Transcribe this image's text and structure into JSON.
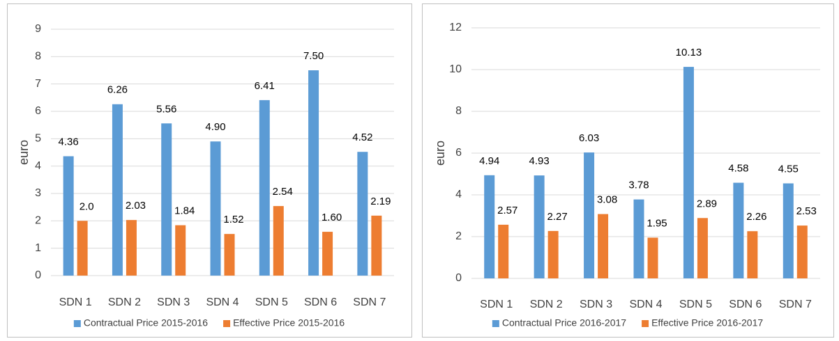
{
  "chart_data": [
    {
      "type": "bar",
      "y_label": "euro",
      "categories": [
        "SDN 1",
        "SDN 2",
        "SDN 3",
        "SDN 4",
        "SDN 5",
        "SDN 6",
        "SDN 7"
      ],
      "series": [
        {
          "name": "Contractual Price 2015-2016",
          "color": "#5b9bd5",
          "values": [
            4.36,
            6.26,
            5.56,
            4.9,
            6.41,
            7.5,
            4.52
          ],
          "value_labels": [
            "4.36",
            "6.26",
            "5.56",
            "4.90",
            "6.41",
            "7.50",
            "4.52"
          ]
        },
        {
          "name": "Effective Price 2015-2016",
          "color": "#ed7d31",
          "values": [
            2.0,
            2.03,
            1.84,
            1.52,
            2.54,
            1.6,
            2.19
          ],
          "value_labels": [
            "2.0",
            "2.03",
            "1.84",
            "1.52",
            "2.54",
            "1.60",
            "2.19"
          ]
        }
      ],
      "ylim": [
        0,
        9
      ],
      "yticks": [
        0,
        1,
        2,
        3,
        4,
        5,
        6,
        7,
        8,
        9
      ],
      "grid": true,
      "legend": "bottom"
    },
    {
      "type": "bar",
      "y_label": "euro",
      "categories": [
        "SDN 1",
        "SDN 2",
        "SDN 3",
        "SDN 4",
        "SDN 5",
        "SDN 6",
        "SDN 7"
      ],
      "series": [
        {
          "name": "Contractual Price 2016-2017",
          "color": "#5b9bd5",
          "values": [
            4.94,
            4.93,
            6.03,
            3.78,
            10.13,
            4.58,
            4.55
          ]
        },
        {
          "name": "Effective Price 2016-2017",
          "color": "#ed7d31",
          "values": [
            2.57,
            2.27,
            3.08,
            1.95,
            2.89,
            2.26,
            2.53
          ]
        }
      ],
      "ylim": [
        0,
        12
      ],
      "yticks": [
        0,
        2,
        4,
        6,
        8,
        10,
        12
      ],
      "grid": true,
      "legend": "bottom"
    }
  ]
}
